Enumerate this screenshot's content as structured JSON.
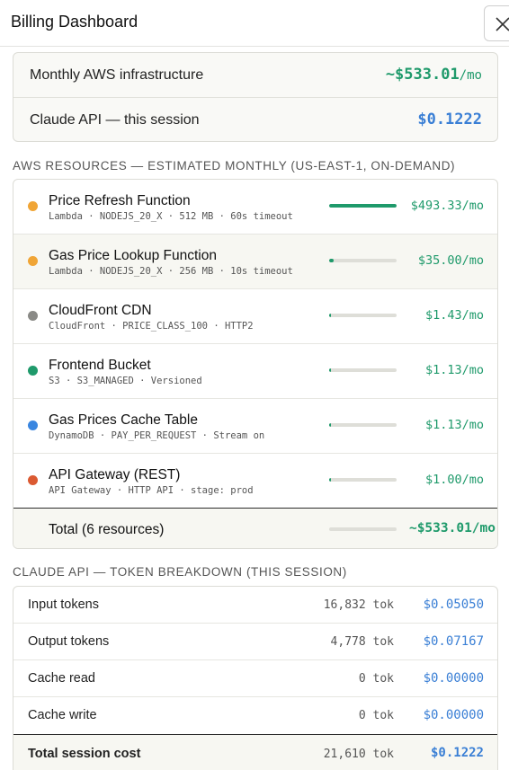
{
  "header": {
    "title": "Billing Dashboard",
    "close_icon": "close-icon"
  },
  "summary": {
    "aws": {
      "label": "Monthly AWS infrastructure",
      "value": "~$533.01",
      "unit": "/mo"
    },
    "claude": {
      "label": "Claude API — this session",
      "value": "$0.1222"
    }
  },
  "aws_section": {
    "title": "AWS RESOURCES — ESTIMATED MONTHLY (US-EAST-1, ON-DEMAND)",
    "resources": [
      {
        "name": "Price Refresh Function",
        "meta": "Lambda · NODEJS_20_X · 512 MB · 60s timeout",
        "cost": "$493.33/mo",
        "share": 1.0,
        "dot_color": "#f0a536"
      },
      {
        "name": "Gas Price Lookup Function",
        "meta": "Lambda · NODEJS_20_X · 256 MB · 10s timeout",
        "cost": "$35.00/mo",
        "share": 0.071,
        "dot_color": "#f0a536"
      },
      {
        "name": "CloudFront CDN",
        "meta": "CloudFront · PRICE_CLASS_100 · HTTP2",
        "cost": "$1.43/mo",
        "share": 0.003,
        "dot_color": "#8a8a86"
      },
      {
        "name": "Frontend Bucket",
        "meta": "S3 · S3_MANAGED · Versioned",
        "cost": "$1.13/mo",
        "share": 0.002,
        "dot_color": "#1f9a6b"
      },
      {
        "name": "Gas Prices Cache Table",
        "meta": "DynamoDB · PAY_PER_REQUEST · Stream on",
        "cost": "$1.13/mo",
        "share": 0.002,
        "dot_color": "#3a86e0"
      },
      {
        "name": "API Gateway (REST)",
        "meta": "API Gateway · HTTP API · stage: prod",
        "cost": "$1.00/mo",
        "share": 0.002,
        "dot_color": "#db5a32"
      }
    ],
    "total": {
      "label": "Total (6 resources)",
      "cost": "~$533.01/mo"
    }
  },
  "token_section": {
    "title": "CLAUDE API — TOKEN BREAKDOWN (THIS SESSION)",
    "rows": [
      {
        "label": "Input tokens",
        "count": "16,832 tok",
        "cost": "$0.05050"
      },
      {
        "label": "Output tokens",
        "count": "4,778 tok",
        "cost": "$0.07167"
      },
      {
        "label": "Cache read",
        "count": "0 tok",
        "cost": "$0.00000"
      },
      {
        "label": "Cache write",
        "count": "0 tok",
        "cost": "$0.00000"
      }
    ],
    "total": {
      "label": "Total session cost",
      "count": "21,610 tok",
      "cost": "$0.1222"
    }
  }
}
